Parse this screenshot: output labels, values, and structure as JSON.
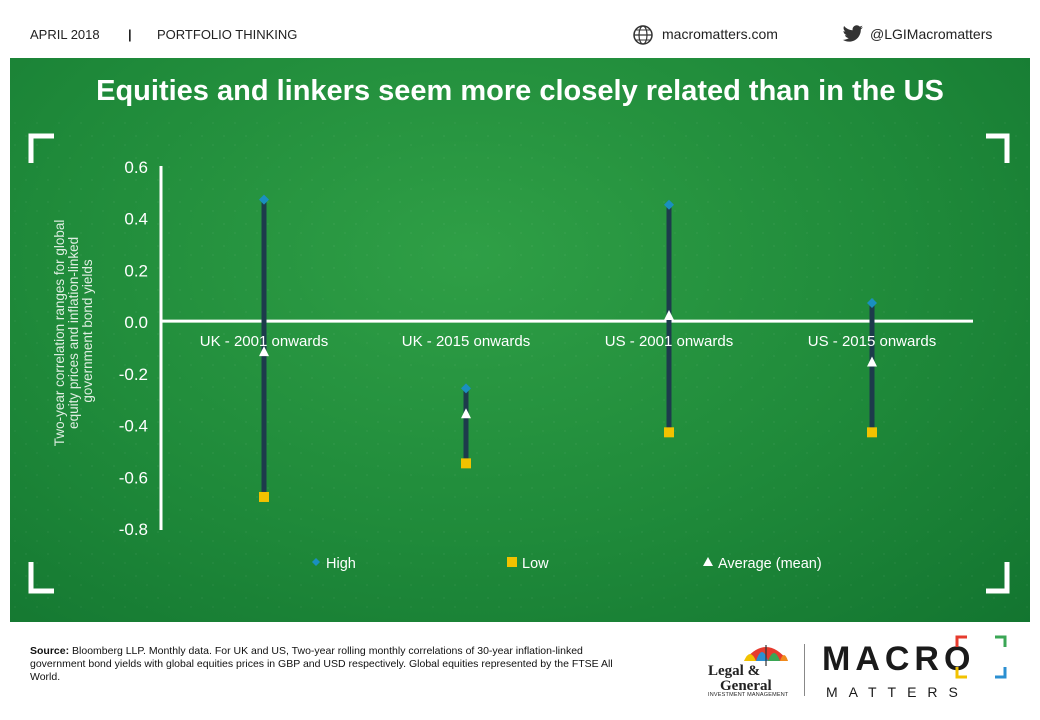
{
  "header": {
    "date": "APRIL 2018",
    "separator": "|",
    "section": "PORTFOLIO THINKING",
    "website": "macromatters.com",
    "twitter_handle": "@LGIMacromatters"
  },
  "title": "Equities and linkers seem more closely related than in the US",
  "chart_data": {
    "type": "scatter",
    "subtype": "high-low-average range",
    "title": "Equities and linkers seem more closely related than in the US",
    "ylabel": "Two-year correlation ranges for global equity prices and inflation-linked government bond yields",
    "ylim": [
      -0.8,
      0.6
    ],
    "yticks": [
      "0.6",
      "0.4",
      "0.2",
      "0.0",
      "-0.2",
      "-0.4",
      "-0.6",
      "-0.8"
    ],
    "ytick_values": [
      0.6,
      0.4,
      0.2,
      0.0,
      -0.2,
      -0.4,
      -0.6,
      -0.8
    ],
    "categories": [
      "UK - 2001 onwards",
      "UK - 2015 onwards",
      "US - 2001 onwards",
      "US - 2015 onwards"
    ],
    "series": [
      {
        "name": "High",
        "marker": "diamond",
        "color": "#1a8fc0",
        "values": [
          0.47,
          -0.26,
          0.45,
          0.07
        ]
      },
      {
        "name": "Low",
        "marker": "square",
        "color": "#f2c200",
        "values": [
          -0.68,
          -0.55,
          -0.43,
          -0.43
        ]
      },
      {
        "name": "Average (mean)",
        "marker": "triangle",
        "color": "#ffffff",
        "values": [
          -0.12,
          -0.36,
          0.02,
          -0.16
        ]
      }
    ],
    "range_line_color": "#1d3b4c",
    "axis_color": "#ffffff",
    "legend_position": "bottom",
    "grid": false
  },
  "footer": {
    "source_label": "Source:",
    "source_text": "Bloomberg LLP. Monthly data. For UK and US, Two-year rolling monthly correlations of 30-year inflation-linked government bond yields with global equities prices in GBP and USD respectively. Global equities represented by the FTSE All World.",
    "lg_line1": "Legal &",
    "lg_line2": "General",
    "lg_sub": "INVESTMENT MANAGEMENT",
    "macro": "MACRO",
    "matters": "MATTERS"
  },
  "icons": {
    "globe": "globe-icon",
    "twitter": "twitter-bird-icon",
    "umbrella": "umbrella-icon"
  }
}
